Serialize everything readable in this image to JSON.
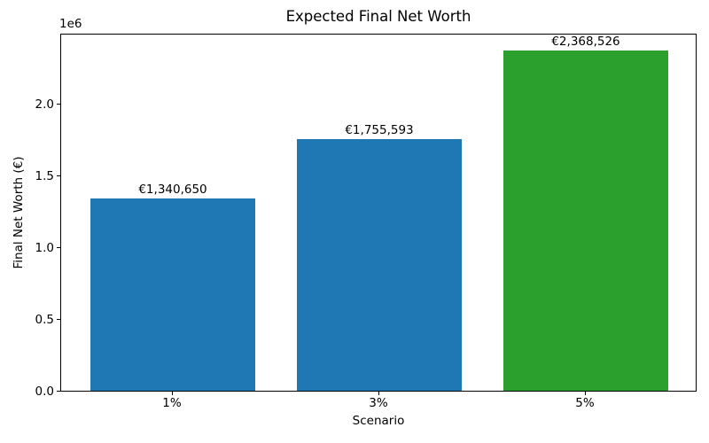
{
  "chart_data": {
    "type": "bar",
    "title": "Expected Final Net Worth",
    "xlabel": "Scenario",
    "ylabel": "Final Net Worth (€)",
    "y_offset_text": "1e6",
    "categories": [
      "1%",
      "3%",
      "5%"
    ],
    "values": [
      1340650,
      1755593,
      2368526
    ],
    "bar_labels": [
      "€1,340,650",
      "€1,755,593",
      "€2,368,526"
    ],
    "bar_colors": [
      "#1f77b4",
      "#1f77b4",
      "#2ca02c"
    ],
    "yticks": [
      0.0,
      0.5,
      1.0,
      1.5,
      2.0
    ],
    "ytick_labels": [
      "0.0",
      "0.5",
      "1.0",
      "1.5",
      "2.0"
    ],
    "ylim": [
      0,
      2487000
    ],
    "grid": false,
    "legend": null,
    "colors": {
      "background": "#ffffff",
      "axis": "#000000",
      "text": "#000000",
      "bar_blue": "#1f77b4",
      "bar_green": "#2ca02c"
    }
  }
}
